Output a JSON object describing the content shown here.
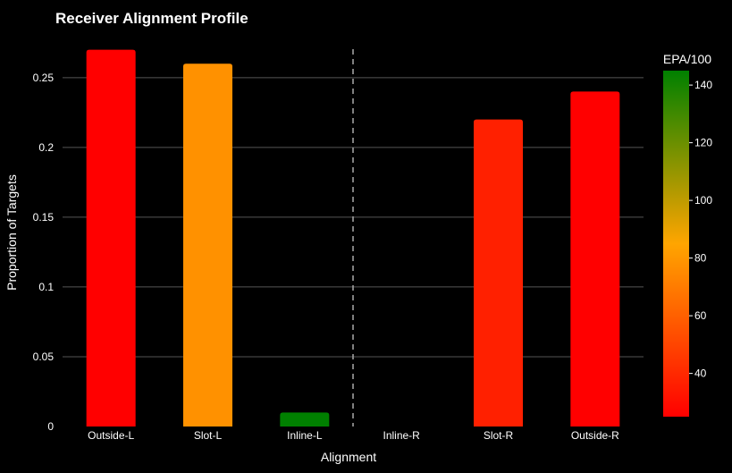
{
  "chart_data": {
    "type": "bar",
    "title": "Receiver Alignment Profile",
    "xlabel": "Alignment",
    "ylabel": "Proportion of Targets",
    "categories": [
      "Outside-L",
      "Slot-L",
      "Inline-L",
      "Inline-R",
      "Slot-R",
      "Outside-R"
    ],
    "values": [
      0.27,
      0.26,
      0.01,
      0,
      0.22,
      0.24
    ],
    "colors": [
      "#ff0000",
      "#ff9100",
      "#008000",
      "#000000",
      "#ff2000",
      "#ff0000"
    ],
    "ylim": [
      0,
      0.28
    ],
    "yticks": [
      0,
      0.05,
      0.1,
      0.15,
      0.2,
      0.25
    ],
    "ytick_labels": [
      "0",
      "0.05",
      "0.1",
      "0.15",
      "0.2",
      "0.25"
    ],
    "grid": true,
    "divider_between": [
      "Inline-L",
      "Inline-R"
    ],
    "colorbar": {
      "title": "EPA/100",
      "range": [
        25,
        145
      ],
      "ticks": [
        40,
        60,
        80,
        100,
        120,
        140
      ],
      "colors": [
        "#ff0000",
        "#ffa500",
        "#008000"
      ]
    }
  }
}
